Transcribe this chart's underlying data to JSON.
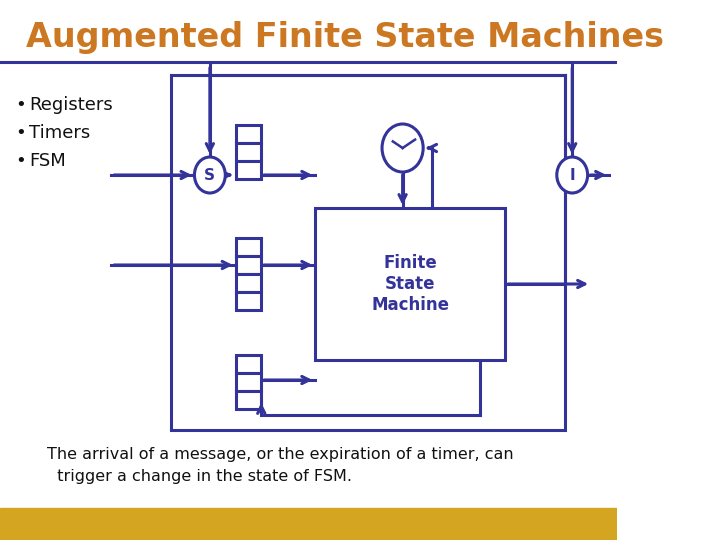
{
  "title": "Augmented Finite State Machines",
  "title_color": "#CC7722",
  "title_fontsize": 24,
  "bullet_items": [
    "Registers",
    "Timers",
    "FSM"
  ],
  "body_text_color": "#111111",
  "diagram_color": "#333399",
  "fsm_label": "Finite\nState\nMachine",
  "bottom_text_line1": "The arrival of a message, or the expiration of a timer, can",
  "bottom_text_line2": "  trigger a change in the state of FSM.",
  "bg_color": "#FFFFFF",
  "gold_bar_color": "#D4A520"
}
